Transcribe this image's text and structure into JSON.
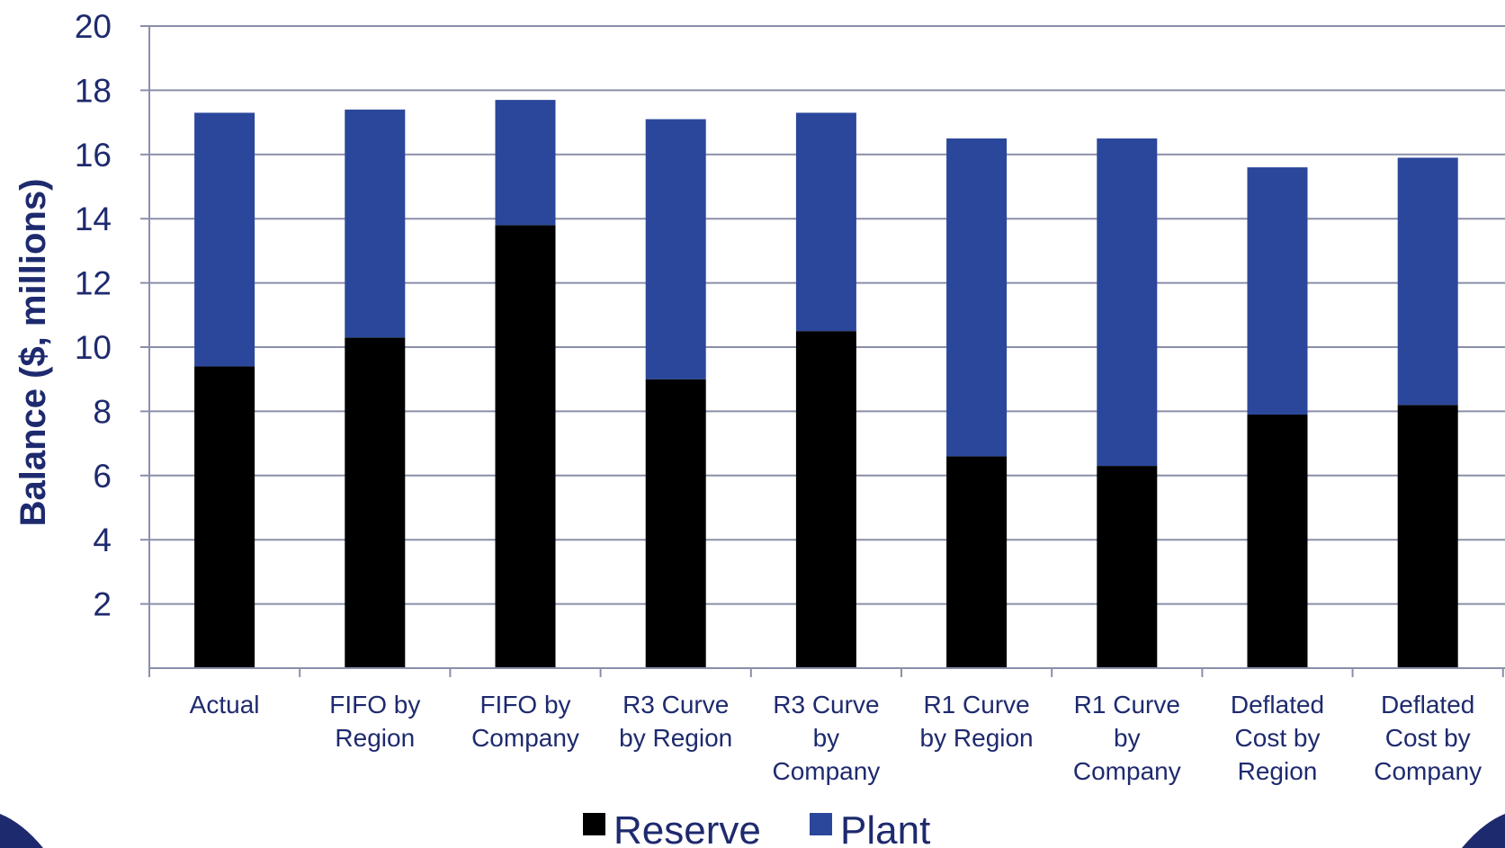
{
  "chart_data": {
    "type": "bar",
    "stacked": true,
    "categories": [
      "Actual",
      "FIFO by Region",
      "FIFO by Company",
      "R3 Curve by Region",
      "R3 Curve by Company",
      "R1 Curve by Region",
      "R1 Curve by Company",
      "Deflated Cost by Region",
      "Deflated Cost by Company"
    ],
    "category_lines": [
      [
        "Actual"
      ],
      [
        "FIFO by",
        "Region"
      ],
      [
        "FIFO by",
        "Company"
      ],
      [
        "R3 Curve",
        "by Region"
      ],
      [
        "R3 Curve",
        "by",
        "Company"
      ],
      [
        "R1 Curve",
        "by Region"
      ],
      [
        "R1 Curve",
        "by",
        "Company"
      ],
      [
        "Deflated",
        "Cost by",
        "Region"
      ],
      [
        "Deflated",
        "Cost by",
        "Company"
      ]
    ],
    "series": [
      {
        "name": "Reserve",
        "color": "#000000",
        "values": [
          9.4,
          10.3,
          13.8,
          9.0,
          10.5,
          6.6,
          6.3,
          7.9,
          8.2
        ]
      },
      {
        "name": "Plant",
        "color": "#2b479b",
        "values": [
          7.9,
          7.1,
          3.9,
          8.1,
          6.8,
          9.9,
          10.2,
          7.7,
          7.7
        ]
      }
    ],
    "xlabel": "",
    "ylabel": "Balance ($, millions)",
    "ylim": [
      0,
      20
    ],
    "yticks": [
      2,
      4,
      6,
      8,
      10,
      12,
      14,
      16,
      18,
      20
    ],
    "grid": true,
    "legend_position": "bottom-center"
  }
}
